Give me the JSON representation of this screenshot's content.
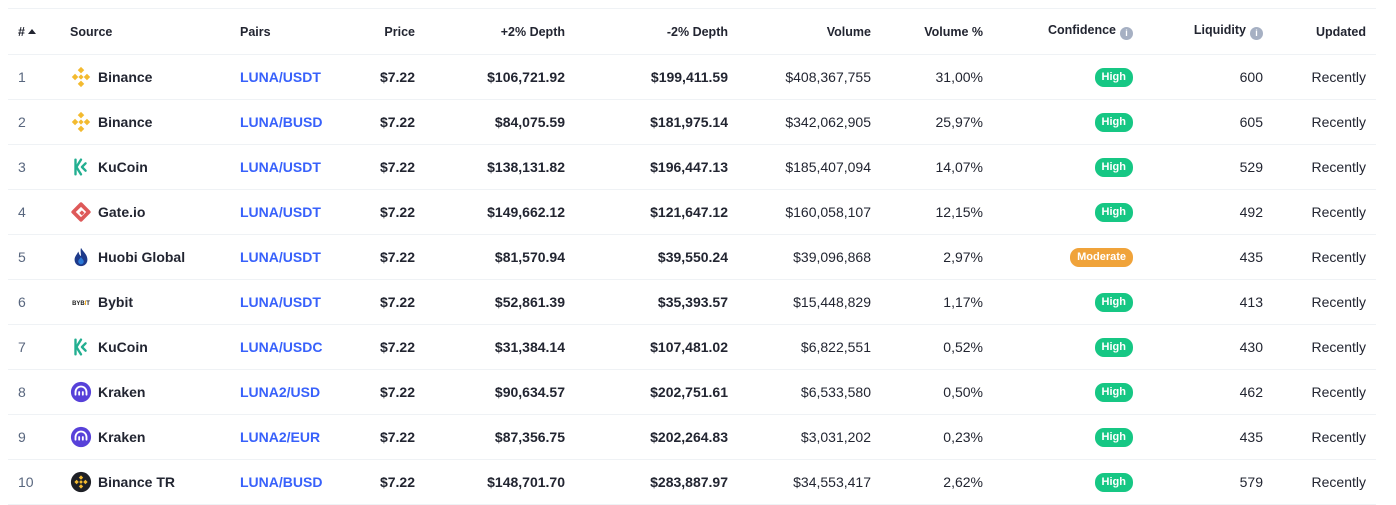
{
  "headers": {
    "rank": "#",
    "source": "Source",
    "pairs": "Pairs",
    "price": "Price",
    "depth_plus": "+2% Depth",
    "depth_minus": "-2% Depth",
    "volume": "Volume",
    "volume_pct": "Volume %",
    "confidence": "Confidence",
    "liquidity": "Liquidity",
    "updated": "Updated"
  },
  "rows": [
    {
      "rank": "1",
      "source": "Binance",
      "logo": "binance",
      "pair": "LUNA/USDT",
      "price": "$7.22",
      "depth_plus": "$106,721.92",
      "depth_minus": "$199,411.59",
      "volume": "$408,367,755",
      "volume_pct": "31,00%",
      "confidence": "High",
      "liquidity": "600",
      "updated": "Recently"
    },
    {
      "rank": "2",
      "source": "Binance",
      "logo": "binance",
      "pair": "LUNA/BUSD",
      "price": "$7.22",
      "depth_plus": "$84,075.59",
      "depth_minus": "$181,975.14",
      "volume": "$342,062,905",
      "volume_pct": "25,97%",
      "confidence": "High",
      "liquidity": "605",
      "updated": "Recently"
    },
    {
      "rank": "3",
      "source": "KuCoin",
      "logo": "kucoin",
      "pair": "LUNA/USDT",
      "price": "$7.22",
      "depth_plus": "$138,131.82",
      "depth_minus": "$196,447.13",
      "volume": "$185,407,094",
      "volume_pct": "14,07%",
      "confidence": "High",
      "liquidity": "529",
      "updated": "Recently"
    },
    {
      "rank": "4",
      "source": "Gate.io",
      "logo": "gateio",
      "pair": "LUNA/USDT",
      "price": "$7.22",
      "depth_plus": "$149,662.12",
      "depth_minus": "$121,647.12",
      "volume": "$160,058,107",
      "volume_pct": "12,15%",
      "confidence": "High",
      "liquidity": "492",
      "updated": "Recently"
    },
    {
      "rank": "5",
      "source": "Huobi Global",
      "logo": "huobi",
      "pair": "LUNA/USDT",
      "price": "$7.22",
      "depth_plus": "$81,570.94",
      "depth_minus": "$39,550.24",
      "volume": "$39,096,868",
      "volume_pct": "2,97%",
      "confidence": "Moderate",
      "liquidity": "435",
      "updated": "Recently"
    },
    {
      "rank": "6",
      "source": "Bybit",
      "logo": "bybit",
      "pair": "LUNA/USDT",
      "price": "$7.22",
      "depth_plus": "$52,861.39",
      "depth_minus": "$35,393.57",
      "volume": "$15,448,829",
      "volume_pct": "1,17%",
      "confidence": "High",
      "liquidity": "413",
      "updated": "Recently"
    },
    {
      "rank": "7",
      "source": "KuCoin",
      "logo": "kucoin",
      "pair": "LUNA/USDC",
      "price": "$7.22",
      "depth_plus": "$31,384.14",
      "depth_minus": "$107,481.02",
      "volume": "$6,822,551",
      "volume_pct": "0,52%",
      "confidence": "High",
      "liquidity": "430",
      "updated": "Recently"
    },
    {
      "rank": "8",
      "source": "Kraken",
      "logo": "kraken",
      "pair": "LUNA2/USD",
      "price": "$7.22",
      "depth_plus": "$90,634.57",
      "depth_minus": "$202,751.61",
      "volume": "$6,533,580",
      "volume_pct": "0,50%",
      "confidence": "High",
      "liquidity": "462",
      "updated": "Recently"
    },
    {
      "rank": "9",
      "source": "Kraken",
      "logo": "kraken",
      "pair": "LUNA2/EUR",
      "price": "$7.22",
      "depth_plus": "$87,356.75",
      "depth_minus": "$202,264.83",
      "volume": "$3,031,202",
      "volume_pct": "0,23%",
      "confidence": "High",
      "liquidity": "435",
      "updated": "Recently"
    },
    {
      "rank": "10",
      "source": "Binance TR",
      "logo": "binancetr",
      "pair": "LUNA/BUSD",
      "price": "$7.22",
      "depth_plus": "$148,701.70",
      "depth_minus": "$283,887.97",
      "volume": "$34,553,417",
      "volume_pct": "2,62%",
      "confidence": "High",
      "liquidity": "579",
      "updated": "Recently"
    }
  ],
  "colors": {
    "pair_link": "#3861fb",
    "high": "#16c784",
    "moderate": "#f0a33a",
    "binance": "#f3ba2f",
    "kucoin": "#23af91",
    "gateio": "#de5959",
    "huobi": "#1e3a8a",
    "kraken": "#5741d9"
  },
  "icons": {
    "sort": "sort-ascending-icon",
    "info": "info-icon"
  }
}
